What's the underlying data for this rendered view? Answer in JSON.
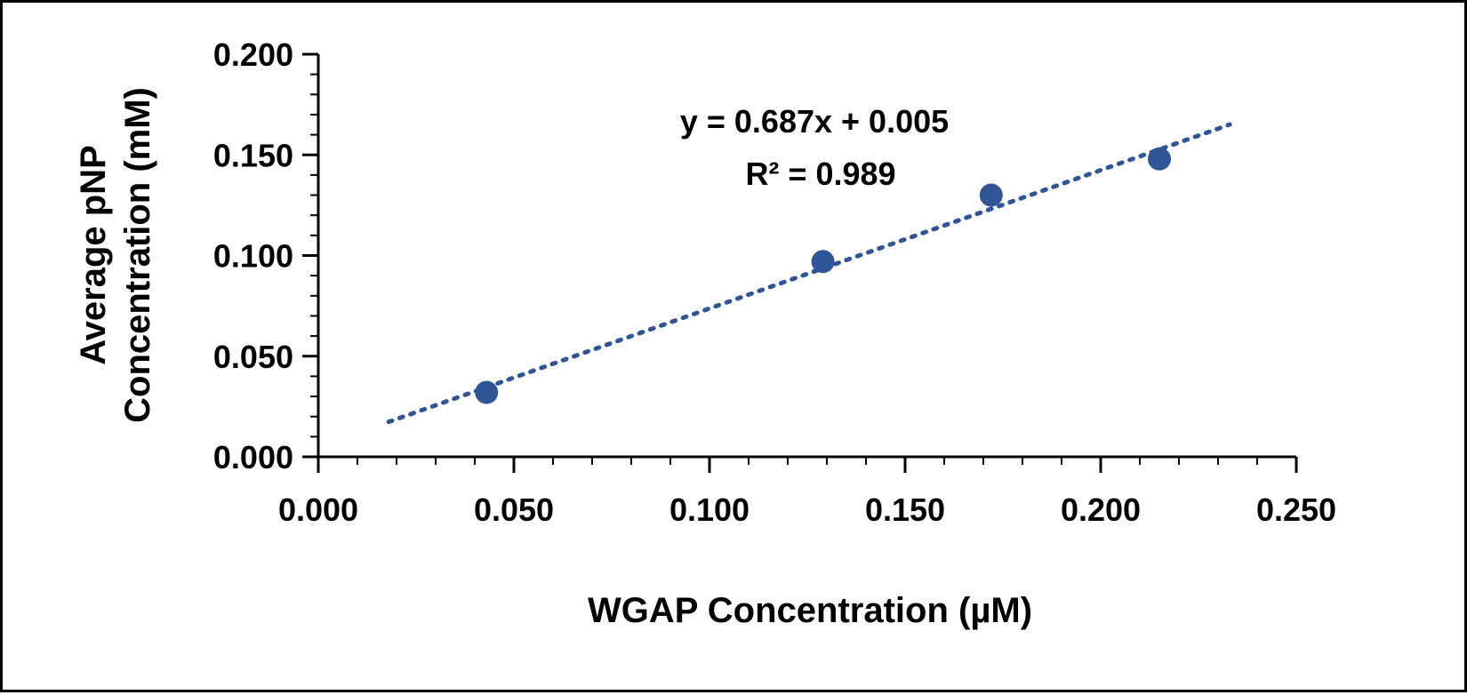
{
  "chart_data": {
    "type": "scatter",
    "xlabel": "WGAP Concentration (µM)",
    "ylabel": [
      "Average pNP",
      "Concentration (mM)"
    ],
    "xlim": [
      0.0,
      0.25
    ],
    "ylim": [
      0.0,
      0.2
    ],
    "x_ticks": [
      "0.000",
      "0.050",
      "0.100",
      "0.150",
      "0.200",
      "0.250"
    ],
    "y_ticks": [
      "0.000",
      "0.050",
      "0.100",
      "0.150",
      "0.200"
    ],
    "x_minor_step": 0.01,
    "y_minor_step": 0.01,
    "grid": false,
    "series": [
      {
        "x": [
          0.043,
          0.129,
          0.172,
          0.215
        ],
        "y": [
          0.032,
          0.097,
          0.13,
          0.148
        ],
        "color": "#2F5597",
        "marker": "circle"
      }
    ],
    "trendline": {
      "slope": 0.687,
      "intercept": 0.005,
      "x_range": [
        0.018,
        0.233
      ],
      "style": "dotted",
      "color": "#2F5597"
    },
    "annotations": [
      "y = 0.687x + 0.005",
      "R² = 0.989"
    ]
  }
}
